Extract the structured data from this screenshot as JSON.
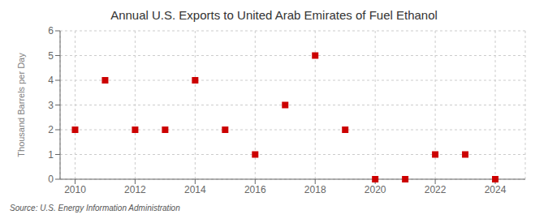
{
  "chart_data": {
    "type": "scatter",
    "title": "Annual U.S. Exports to United Arab Emirates of Fuel Ethanol",
    "ylabel": "Thousand Barrels per Day",
    "annotations": [
      "Source: U.S. Energy Information Administration"
    ],
    "x": [
      2010,
      2011,
      2012,
      2013,
      2014,
      2015,
      2016,
      2017,
      2018,
      2019,
      2020,
      2021,
      2022,
      2023,
      2024
    ],
    "values": [
      2,
      4,
      2,
      2,
      4,
      2,
      1,
      3,
      5,
      2,
      0,
      0,
      1,
      1,
      0
    ],
    "color": "#cc0000",
    "marker": "square",
    "xlim": [
      2009.5,
      2025.0
    ],
    "ylim": [
      0,
      6
    ],
    "xticks": [
      2010,
      2012,
      2014,
      2016,
      2018,
      2020,
      2022,
      2024
    ],
    "yticks": [
      0,
      1,
      2,
      3,
      4,
      5,
      6
    ],
    "grid": true
  }
}
